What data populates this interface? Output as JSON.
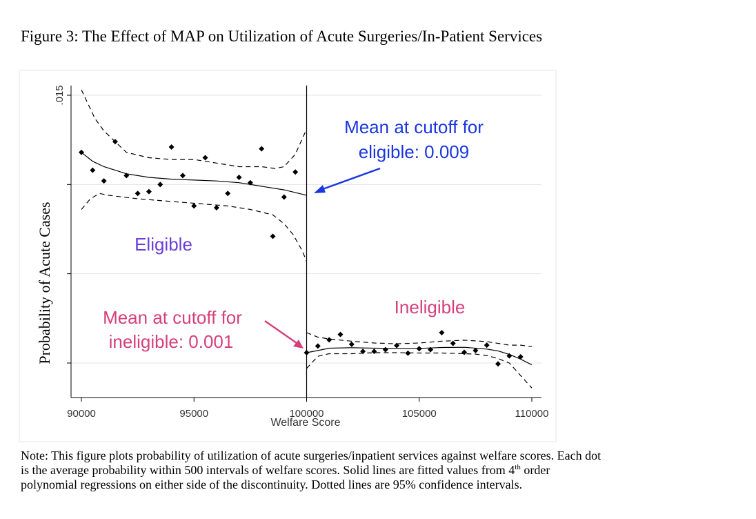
{
  "figure": {
    "title": "Figure 3:  The Effect of MAP on Utilization of Acute Surgeries/In-Patient Services",
    "note": {
      "line1": "Note: This figure plots probability of utilization of acute surgeries/inpatient services against welfare scores. Each dot",
      "line2_pre": "is the average probability within 500 intervals of welfare scores. Solid lines are fitted values from 4",
      "line2_sup": "th",
      "line2_post": " order",
      "line3": "polynomial regressions on either side of the discontinuity. Dotted lines are 95% confidence intervals."
    }
  },
  "chart_data": {
    "type": "scatter",
    "xlabel": "Welfare Score",
    "ylabel": "Probability of Acute Cases",
    "xlim": [
      90000,
      110000
    ],
    "ylim": [
      0,
      0.015
    ],
    "x_ticks": [
      {
        "value": 90000,
        "label": "90000"
      },
      {
        "value": 95000,
        "label": "95000"
      },
      {
        "value": 100000,
        "label": "100000"
      },
      {
        "value": 105000,
        "label": "105000"
      },
      {
        "value": 110000,
        "label": "110000"
      }
    ],
    "y_ticks": [
      {
        "value": 0.015,
        "label": ".015"
      },
      {
        "value": 0.01,
        "label": ""
      },
      {
        "value": 0.005,
        "label": ""
      },
      {
        "value": 0.0,
        "label": ""
      }
    ],
    "grid": true,
    "cutoff": 100000,
    "series": [
      {
        "role": "binned means, eligible side",
        "x": [
          90000,
          90500,
          91000,
          91500,
          92000,
          92500,
          93000,
          93500,
          94000,
          94500,
          95000,
          95500,
          96000,
          96500,
          97000,
          97500,
          98000,
          98500,
          99000,
          99500
        ],
        "y": [
          0.0118,
          0.0108,
          0.0102,
          0.0124,
          0.0105,
          0.0095,
          0.0096,
          0.01,
          0.0121,
          0.0105,
          0.0088,
          0.0115,
          0.0087,
          0.0095,
          0.0104,
          0.0101,
          0.012,
          0.0071,
          0.0093,
          0.0107
        ]
      },
      {
        "role": "binned means, ineligible side",
        "x": [
          100000,
          100500,
          101000,
          101500,
          102000,
          102500,
          103000,
          103500,
          104000,
          104500,
          105000,
          105500,
          106000,
          106500,
          107000,
          107500,
          108000,
          108500,
          109000,
          109500
        ],
        "y": [
          0.00058,
          0.00095,
          0.0013,
          0.0016,
          0.00105,
          0.00065,
          0.00065,
          0.00075,
          0.00098,
          0.00055,
          0.0008,
          0.00075,
          0.0017,
          0.0011,
          0.0006,
          0.0007,
          0.001,
          -5e-05,
          0.0004,
          0.00035
        ]
      },
      {
        "role": "polynomial fit, eligible side",
        "x": [
          90000,
          90500,
          91000,
          91500,
          92000,
          92500,
          93000,
          94000,
          95000,
          96000,
          97000,
          98000,
          99000,
          100000
        ],
        "y": [
          0.0118,
          0.0113,
          0.011,
          0.0108,
          0.0106,
          0.0105,
          0.0104,
          0.0103,
          0.01025,
          0.0102,
          0.0101,
          0.0099,
          0.0097,
          0.0094
        ]
      },
      {
        "role": "upper 95% CI, eligible side",
        "x": [
          90000,
          90300,
          90600,
          91000,
          91500,
          92000,
          93000,
          94000,
          95000,
          96000,
          97000,
          98000,
          98600,
          99000,
          99500,
          100000
        ],
        "y": [
          0.0153,
          0.0145,
          0.0137,
          0.013,
          0.0124,
          0.0118,
          0.0115,
          0.0114,
          0.0114,
          0.0112,
          0.011,
          0.011,
          0.0109,
          0.011,
          0.0117,
          0.0131
        ]
      },
      {
        "role": "lower 95% CI, eligible side",
        "x": [
          90000,
          90400,
          90800,
          91200,
          91800,
          92500,
          93500,
          94500,
          95500,
          96500,
          97500,
          98500,
          99000,
          99400,
          99800,
          100000
        ],
        "y": [
          0.0086,
          0.0092,
          0.0095,
          0.0094,
          0.0093,
          0.0092,
          0.0091,
          0.009,
          0.0089,
          0.0088,
          0.0086,
          0.0083,
          0.0078,
          0.0072,
          0.0063,
          0.0057
        ]
      },
      {
        "role": "polynomial fit, ineligible side",
        "x": [
          100000,
          100500,
          101000,
          102000,
          103000,
          104000,
          105000,
          106000,
          107000,
          108000,
          108500,
          109000,
          109500,
          110000
        ],
        "y": [
          0.00058,
          0.0007,
          0.00083,
          0.00086,
          0.00083,
          0.00082,
          0.00082,
          0.00087,
          0.00088,
          0.00078,
          0.00068,
          0.00048,
          0.00022,
          -0.0001
        ]
      },
      {
        "role": "upper 95% CI, ineligible side",
        "x": [
          100000,
          100500,
          101000,
          102000,
          103000,
          104000,
          105000,
          106000,
          107000,
          107500,
          108000,
          108500,
          109000,
          109500,
          110000
        ],
        "y": [
          0.0017,
          0.00145,
          0.00135,
          0.00122,
          0.00112,
          0.00108,
          0.00112,
          0.00122,
          0.00128,
          0.00124,
          0.0012,
          0.0011,
          0.001,
          0.001,
          0.00092
        ]
      },
      {
        "role": "lower 95% CI, ineligible side",
        "x": [
          100000,
          100500,
          101000,
          102000,
          103000,
          104000,
          105000,
          106000,
          107000,
          107500,
          108000,
          108500,
          109000,
          109500,
          110000
        ],
        "y": [
          -0.0003,
          0.00038,
          0.00052,
          0.00052,
          0.00058,
          0.00058,
          0.00056,
          0.00056,
          0.00052,
          0.0005,
          0.00042,
          0.00025,
          0.0,
          -0.0007,
          -0.0014
        ]
      }
    ],
    "annotations": [
      {
        "name": "mean-eligible",
        "line1": "Mean at cutoff for",
        "line2": "eligible: 0.009",
        "color": "#1a36e0"
      },
      {
        "name": "mean-ineligible",
        "line1": "Mean at cutoff for",
        "line2": "ineligible: 0.001",
        "color": "#d6407a"
      },
      {
        "name": "eligible-label",
        "text": "Eligible",
        "color": "#6a3fd6"
      },
      {
        "name": "ineligible-label",
        "text": "Ineligible",
        "color": "#d6407a"
      }
    ]
  }
}
